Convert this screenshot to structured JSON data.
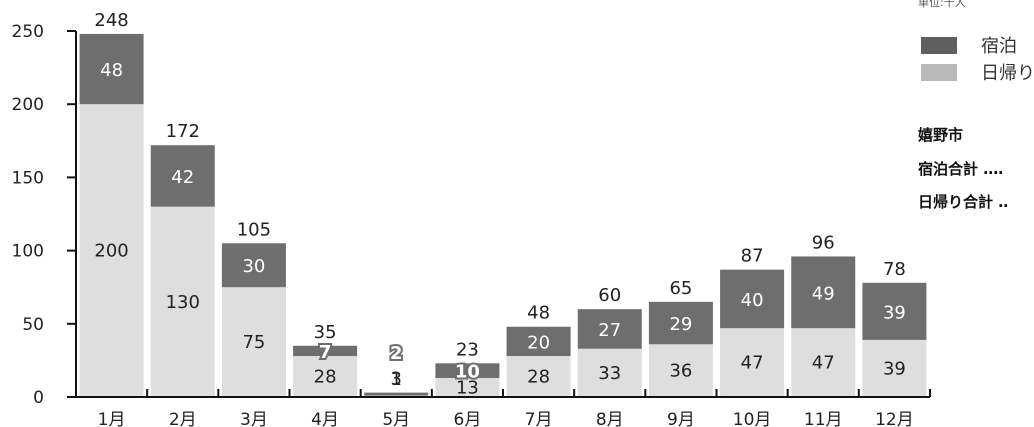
{
  "unit_note": "単位:千人",
  "legend": [
    {
      "label": "宿泊",
      "color": "#5f5f5f"
    },
    {
      "label": "日帰り",
      "color": "#b9b9b9"
    }
  ],
  "info": {
    "city": "嬉野市",
    "overnight_total": "宿泊合計 ‥‥",
    "daytrip_total": "日帰り合計 ‥"
  },
  "chart_data": {
    "type": "bar",
    "stacked": true,
    "title": "",
    "xlabel": "",
    "ylabel": "",
    "ylim": [
      0,
      250
    ],
    "yticks": [
      0,
      50,
      100,
      150,
      200,
      250
    ],
    "grid": false,
    "legend_position": "top-right",
    "categories": [
      "1月",
      "2月",
      "3月",
      "4月",
      "5月",
      "6月",
      "7月",
      "8月",
      "9月",
      "10月",
      "11月",
      "12月"
    ],
    "series": [
      {
        "name": "日帰り",
        "color": "#dedede",
        "values": [
          200,
          130,
          75,
          28,
          1,
          13,
          28,
          33,
          36,
          47,
          47,
          39
        ]
      },
      {
        "name": "宿泊",
        "color": "#6e6e6e",
        "values": [
          48,
          42,
          30,
          7,
          2,
          10,
          20,
          27,
          29,
          40,
          49,
          39
        ]
      }
    ],
    "totals": [
      248,
      172,
      105,
      35,
      3,
      23,
      48,
      60,
      65,
      87,
      96,
      78
    ]
  }
}
